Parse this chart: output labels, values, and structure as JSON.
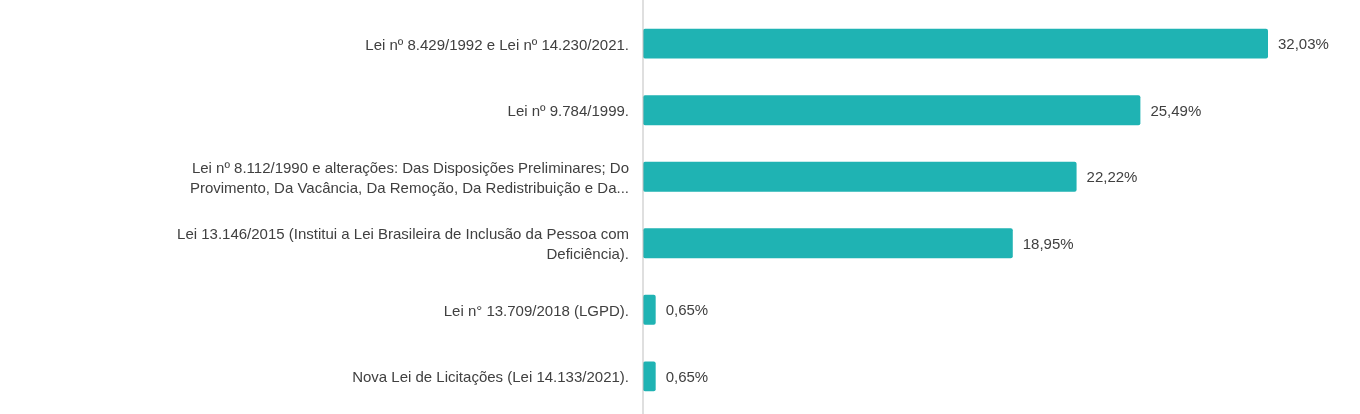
{
  "chart_data": {
    "type": "bar",
    "orientation": "horizontal",
    "categories": [
      "Lei nº 8.429/1992 e Lei nº 14.230/2021.",
      "Lei nº 9.784/1999.",
      "Lei nº 8.112/1990 e alterações: Das Disposições Preliminares; Do Provimento, Da Vacância, Da Remoção, Da Redistribuição e Da...",
      "Lei 13.146/2015 (Institui a Lei Brasileira de Inclusão da Pessoa com Deficiência).",
      "Lei n° 13.709/2018 (LGPD).",
      "Nova Lei de Licitações (Lei 14.133/2021)."
    ],
    "values": [
      32.03,
      25.49,
      22.22,
      18.95,
      0.65,
      0.65
    ],
    "value_labels": [
      "32,03%",
      "25,49%",
      "22,22%",
      "18,95%",
      "0,65%",
      "0,65%"
    ],
    "color": "#1fb3b3"
  }
}
